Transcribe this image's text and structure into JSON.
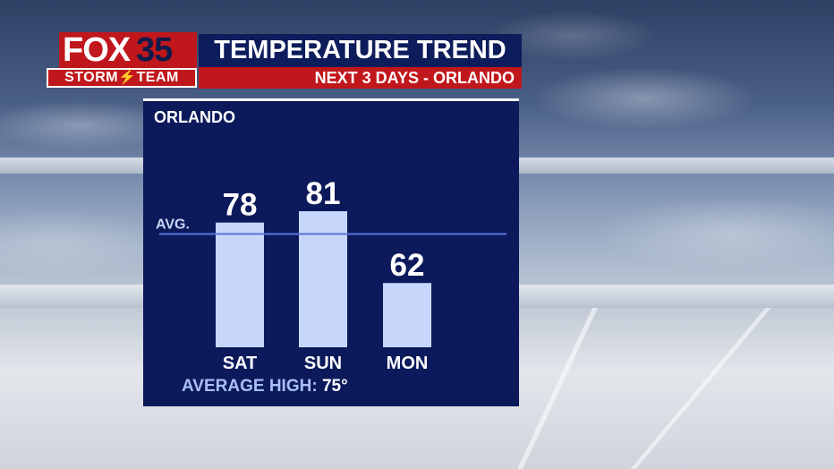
{
  "branding": {
    "fox": "FOX",
    "number": "35",
    "team": "STORM⚡TEAM"
  },
  "header": {
    "title": "TEMPERATURE TREND",
    "subtitle": "NEXT 3 DAYS - ORLANDO"
  },
  "colors": {
    "bar": "#c7d7fb",
    "avg_line": "#5b74d6",
    "panel": "#0c1a5b",
    "accent_red": "#c0171c"
  },
  "chart_data": {
    "type": "bar",
    "title": "ORLANDO",
    "categories": [
      "SAT",
      "SUN",
      "MON"
    ],
    "values": [
      78,
      81,
      62
    ],
    "value_labels": [
      "78",
      "81",
      "62"
    ],
    "average": 75,
    "average_label": "AVG.",
    "footer_label": "AVERAGE HIGH:",
    "footer_value": "75°",
    "ylim": [
      45,
      90
    ],
    "grid": false,
    "legend": "none"
  }
}
